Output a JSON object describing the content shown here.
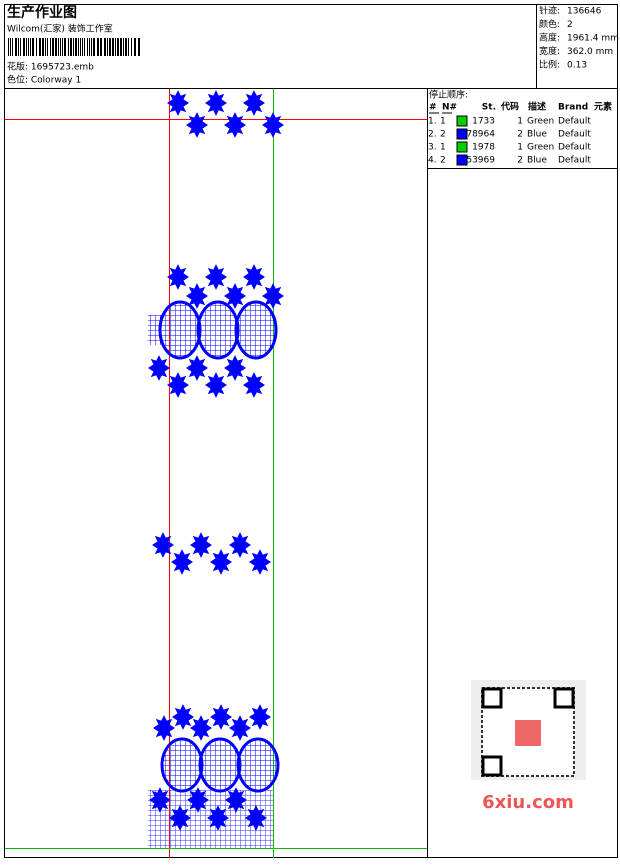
{
  "header": {
    "title": "生产作业图",
    "studio": "Wilcom(汇家) 装饰工作室",
    "design": "花版: 1695723.emb",
    "colorway": "色位: Colorway 1"
  },
  "info": [
    {
      "label": "针迹:",
      "value": "136646"
    },
    {
      "label": "颜色:",
      "value": "2"
    },
    {
      "label": "高度:",
      "value": "1961.4 mm"
    },
    {
      "label": "宽度:",
      "value": "362.0 mm"
    },
    {
      "label": "比例:",
      "value": "0.13"
    }
  ],
  "stop_sequence": {
    "title": "停止顺序:",
    "columns": [
      "#",
      "N#",
      "St.",
      "代码",
      "描述",
      "Brand",
      "元素"
    ],
    "rows": [
      {
        "index": "1.",
        "needle": "1",
        "color": "#00d000",
        "stitches": "1733",
        "code": "1",
        "description": "Green",
        "brand": "Default"
      },
      {
        "index": "2.",
        "needle": "2",
        "color": "#0000ff",
        "stitches": "78964",
        "code": "2",
        "description": "Blue",
        "brand": "Default"
      },
      {
        "index": "3.",
        "needle": "1",
        "color": "#00d000",
        "stitches": "1978",
        "code": "1",
        "description": "Green",
        "brand": "Default"
      },
      {
        "index": "4.",
        "needle": "2",
        "color": "#0000ff",
        "stitches": "53969",
        "code": "2",
        "description": "Blue",
        "brand": "Default"
      }
    ]
  },
  "watermark": "6xiu.com"
}
